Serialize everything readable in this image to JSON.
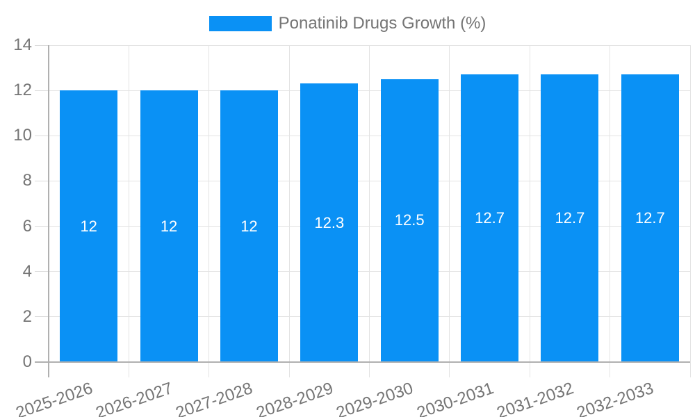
{
  "legend": {
    "label": "Ponatinib Drugs Growth (%)"
  },
  "chart_data": {
    "type": "bar",
    "title": "Ponatinib Drugs Growth (%)",
    "categories": [
      "2025-2026",
      "2026-2027",
      "2027-2028",
      "2028-2029",
      "2029-2030",
      "2030-2031",
      "2031-2032",
      "2032-2033"
    ],
    "values": [
      12,
      12,
      12,
      12.3,
      12.5,
      12.7,
      12.7,
      12.7
    ],
    "bar_value_labels": [
      "12",
      "12",
      "12",
      "12.3",
      "12.5",
      "12.7",
      "12.7",
      "12.7"
    ],
    "xlabel": "",
    "ylabel": "",
    "ylim": [
      0,
      14
    ],
    "yticks": [
      0,
      2,
      4,
      6,
      8,
      10,
      12,
      14
    ],
    "grid": true,
    "legend_position": "top",
    "x_label_rotation_deg": -19,
    "colors": {
      "bar": "#0A91F5",
      "grid": "#E3E3E3",
      "axis": "#B0B0B0",
      "tick": "#DBDBDB",
      "text": "#757575",
      "bar_label": "#FFFFFF",
      "background": "#FFFFFF"
    }
  }
}
